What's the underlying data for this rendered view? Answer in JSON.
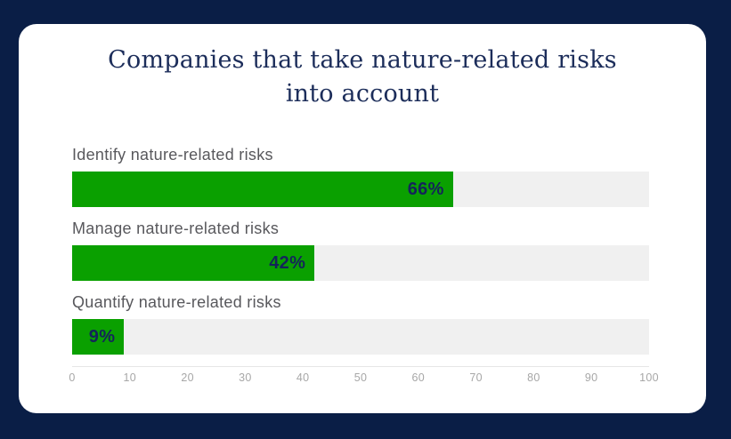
{
  "page": {
    "background_color": "#0a1e46",
    "card_color": "#ffffff"
  },
  "chart_data": {
    "type": "bar",
    "orientation": "horizontal",
    "title": "Companies that take nature-related risks into account",
    "title_lines": [
      "Companies that take nature-related risks",
      "into account"
    ],
    "categories": [
      "Identify nature-related risks",
      "Manage nature-related risks",
      "Quantify nature-related risks"
    ],
    "values": [
      66,
      42,
      9
    ],
    "value_labels": [
      "66%",
      "42%",
      "9%"
    ],
    "xlabel": "",
    "ylabel": "",
    "xlim": [
      0,
      100
    ],
    "x_ticks": [
      0,
      10,
      20,
      30,
      40,
      50,
      60,
      70,
      80,
      90,
      100
    ],
    "grid": false,
    "legend": "none",
    "colors": {
      "bar": "#0aa000",
      "track": "#f0f0f0",
      "title_text": "#1c2d5a",
      "category_text": "#58585c",
      "value_text": "#14245a",
      "tick_text": "#a7a7a7",
      "axis_line": "#e6e6e6"
    }
  }
}
